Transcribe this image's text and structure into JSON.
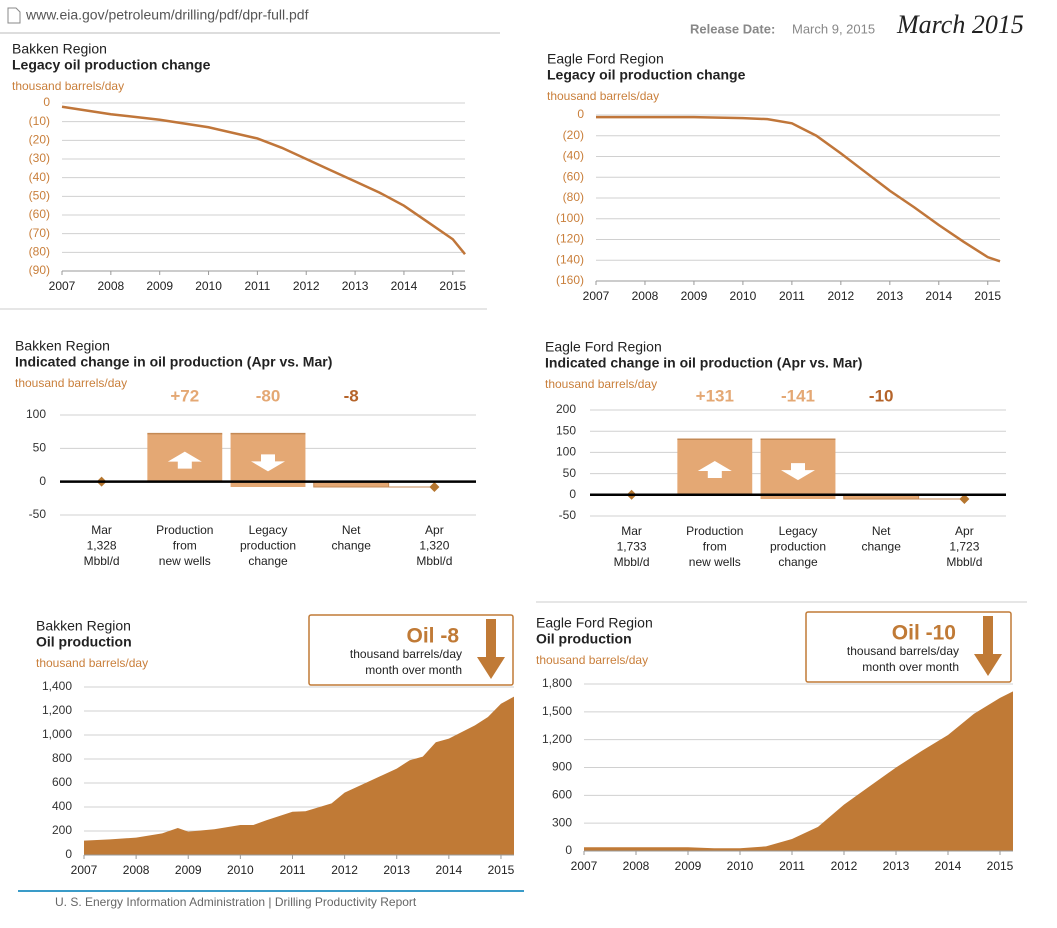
{
  "header": {
    "url": "www.eia.gov/petroleum/drilling/pdf/dpr-full.pdf",
    "release_label": "Release Date:",
    "release_date": "March 9, 2015",
    "edition": "March 2015"
  },
  "footer": "U. S. Energy Information Administration  |  Drilling Productivity Report",
  "chart_data": [
    {
      "type": "line",
      "region": "Bakken Region",
      "title": "Legacy oil production change",
      "ylabel": "thousand barrels/day",
      "color": "#c0763a",
      "grid": true,
      "x": [
        2007,
        2008,
        2009,
        2010,
        2011,
        2011.5,
        2012,
        2012.5,
        2013,
        2013.5,
        2014,
        2014.5,
        2015,
        2015.25
      ],
      "values": [
        -2,
        -6,
        -9,
        -13,
        -19,
        -24,
        -30,
        -36,
        -42,
        -48,
        -55,
        -64,
        -73,
        -81
      ],
      "xlim": [
        2007,
        2015.25
      ],
      "xticks": [
        2007,
        2008,
        2009,
        2010,
        2011,
        2012,
        2013,
        2014,
        2015
      ],
      "ylim": [
        -90,
        0
      ],
      "yticks": [
        0,
        {
          "value": -10,
          "label": "(10)"
        },
        {
          "value": -20,
          "label": "(20)"
        },
        {
          "value": -30,
          "label": "(30)"
        },
        {
          "value": -40,
          "label": "(40)"
        },
        {
          "value": -50,
          "label": "(50)"
        },
        {
          "value": -60,
          "label": "(60)"
        },
        {
          "value": -70,
          "label": "(70)"
        },
        {
          "value": -80,
          "label": "(80)"
        },
        {
          "value": -90,
          "label": "(90)"
        }
      ]
    },
    {
      "type": "line",
      "region": "Eagle Ford Region",
      "title": "Legacy oil production change",
      "ylabel": "thousand barrels/day",
      "color": "#c0763a",
      "grid": true,
      "x": [
        2007,
        2008,
        2009,
        2010,
        2010.5,
        2011,
        2011.5,
        2012,
        2012.5,
        2013,
        2013.5,
        2014,
        2014.5,
        2015,
        2015.25
      ],
      "values": [
        -2,
        -2,
        -2,
        -3,
        -4,
        -8,
        -20,
        -37,
        -55,
        -73,
        -89,
        -106,
        -122,
        -137,
        -141
      ],
      "xlim": [
        2007,
        2015.25
      ],
      "xticks": [
        2007,
        2008,
        2009,
        2010,
        2011,
        2012,
        2013,
        2014,
        2015
      ],
      "ylim": [
        -160,
        0
      ],
      "yticks": [
        0,
        {
          "value": -20,
          "label": "(20)"
        },
        {
          "value": -40,
          "label": "(40)"
        },
        {
          "value": -60,
          "label": "(60)"
        },
        {
          "value": -80,
          "label": "(80)"
        },
        {
          "value": -100,
          "label": "(100)"
        },
        {
          "value": -120,
          "label": "(120)"
        },
        {
          "value": -140,
          "label": "(140)"
        },
        {
          "value": -160,
          "label": "(160)"
        }
      ]
    },
    {
      "type": "waterfall",
      "region": "Bakken Region",
      "title": "Indicated change in oil production (Apr vs. Mar)",
      "ylabel": "thousand barrels/day",
      "color": "#e4a874",
      "net_color": "#b5642a",
      "grid": true,
      "categories": [
        [
          "Mar",
          "1,328",
          "Mbbl/d"
        ],
        [
          "Production",
          "from",
          "new wells"
        ],
        [
          "Legacy",
          "production",
          "change"
        ],
        [
          "Net",
          "change"
        ],
        [
          "Apr",
          "1,320",
          "Mbbl/d"
        ]
      ],
      "values": [
        0,
        72,
        -80,
        -8,
        -8
      ],
      "value_labels": [
        null,
        "+72",
        "-80",
        "-8",
        null
      ],
      "ylim": [
        -50,
        100
      ],
      "yticks": [
        100,
        50,
        0,
        -50
      ]
    },
    {
      "type": "waterfall",
      "region": "Eagle Ford Region",
      "title": "Indicated change in oil production (Apr vs. Mar)",
      "ylabel": "thousand barrels/day",
      "color": "#e4a874",
      "net_color": "#b5642a",
      "grid": true,
      "categories": [
        [
          "Mar",
          "1,733",
          "Mbbl/d"
        ],
        [
          "Production",
          "from",
          "new wells"
        ],
        [
          "Legacy",
          "production",
          "change"
        ],
        [
          "Net",
          "change"
        ],
        [
          "Apr",
          "1,723",
          "Mbbl/d"
        ]
      ],
      "values": [
        0,
        131,
        -141,
        -10,
        -10
      ],
      "value_labels": [
        null,
        "+131",
        "-141",
        "-10",
        null
      ],
      "ylim": [
        -50,
        200
      ],
      "yticks": [
        200,
        150,
        100,
        50,
        0,
        -50
      ]
    },
    {
      "type": "area",
      "region": "Bakken Region",
      "title": "Oil production",
      "ylabel": "thousand barrels/day",
      "color": "#c07a36",
      "grid": true,
      "annotation": [
        "Oil -8",
        "thousand barrels/day",
        "month over month"
      ],
      "x": [
        2007,
        2007.5,
        2008,
        2008.5,
        2008.8,
        2009,
        2009.5,
        2010,
        2010.25,
        2010.5,
        2011,
        2011.25,
        2011.75,
        2012,
        2012.5,
        2013,
        2013.25,
        2013.5,
        2013.75,
        2014,
        2014.5,
        2014.75,
        2015,
        2015.25
      ],
      "values": [
        120,
        130,
        145,
        180,
        225,
        195,
        215,
        250,
        250,
        290,
        360,
        365,
        430,
        520,
        620,
        720,
        790,
        820,
        940,
        970,
        1080,
        1150,
        1260,
        1320
      ],
      "xlim": [
        2007,
        2015.25
      ],
      "xticks": [
        2007,
        2008,
        2009,
        2010,
        2011,
        2012,
        2013,
        2014,
        2015
      ],
      "ylim": [
        0,
        1400
      ],
      "yticks": [
        0,
        200,
        400,
        600,
        800,
        {
          "value": 1000,
          "label": "1,000"
        },
        {
          "value": 1200,
          "label": "1,200"
        },
        {
          "value": 1400,
          "label": "1,400"
        }
      ]
    },
    {
      "type": "area",
      "region": "Eagle Ford Region",
      "title": "Oil production",
      "ylabel": "thousand barrels/day",
      "color": "#c07a36",
      "grid": true,
      "annotation": [
        "Oil -10",
        "thousand barrels/day",
        "month over month"
      ],
      "x": [
        2007,
        2008,
        2009,
        2009.5,
        2010,
        2010.5,
        2011,
        2011.5,
        2012,
        2012.5,
        2013,
        2013.5,
        2014,
        2014.5,
        2015,
        2015.25
      ],
      "values": [
        40,
        40,
        40,
        30,
        30,
        50,
        130,
        260,
        500,
        700,
        900,
        1080,
        1250,
        1480,
        1650,
        1720
      ],
      "xlim": [
        2007,
        2015.25
      ],
      "xticks": [
        2007,
        2008,
        2009,
        2010,
        2011,
        2012,
        2013,
        2014,
        2015
      ],
      "ylim": [
        0,
        1800
      ],
      "yticks": [
        0,
        300,
        600,
        900,
        {
          "value": 1200,
          "label": "1,200"
        },
        {
          "value": 1500,
          "label": "1,500"
        },
        {
          "value": 1800,
          "label": "1,800"
        }
      ]
    }
  ]
}
